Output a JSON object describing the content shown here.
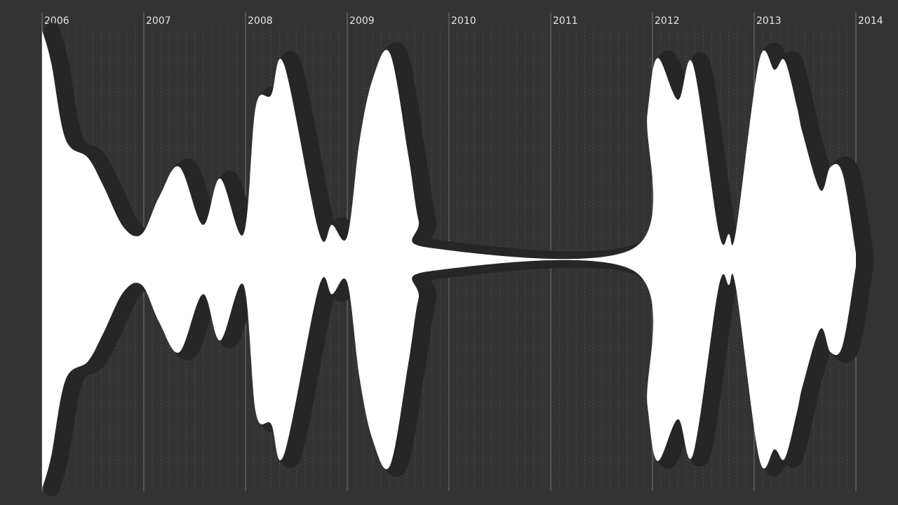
{
  "colors": {
    "background": "#333333",
    "stream_fill": "#ffffff",
    "stream_shadow": "#262626",
    "year_line": "#777777",
    "month_line": "#4c4c4c",
    "label": "#e6e6e6"
  },
  "chart_data": {
    "type": "area",
    "layout": "mirrored-stream",
    "grid": true,
    "title": "",
    "xlabel": "",
    "ylabel": "",
    "ylim": [
      -1,
      1
    ],
    "x_ticks": [
      "2006",
      "2007",
      "2008",
      "2009",
      "2010",
      "2011",
      "2012",
      "2013",
      "2014"
    ],
    "series": [
      {
        "x": [
          2006.0,
          2006.09,
          2006.23,
          2006.45,
          2006.6,
          2006.8,
          2006.98,
          2007.15,
          2007.35,
          2007.58,
          2007.75,
          2007.98,
          2008.1,
          2008.25,
          2008.38,
          2008.72,
          2008.85,
          2009.0,
          2009.12,
          2009.25,
          2009.42,
          2009.6,
          2009.7,
          2009.82,
          2011.82,
          2011.95,
          2012.05,
          2012.25,
          2012.4,
          2012.65,
          2012.75,
          2012.82,
          2013.05,
          2013.2,
          2013.3,
          2013.42,
          2013.48,
          2013.65,
          2013.75,
          2013.87,
          2014.0
        ],
        "y": [
          0.99,
          0.85,
          0.52,
          0.44,
          0.32,
          0.14,
          0.11,
          0.27,
          0.4,
          0.15,
          0.35,
          0.11,
          0.66,
          0.71,
          0.84,
          0.12,
          0.15,
          0.1,
          0.51,
          0.78,
          0.89,
          0.45,
          0.17,
          0.05,
          0.05,
          0.63,
          0.87,
          0.69,
          0.84,
          0.12,
          0.11,
          0.12,
          0.86,
          0.82,
          0.86,
          0.66,
          0.54,
          0.3,
          0.4,
          0.37,
          0.03
        ]
      }
    ]
  }
}
